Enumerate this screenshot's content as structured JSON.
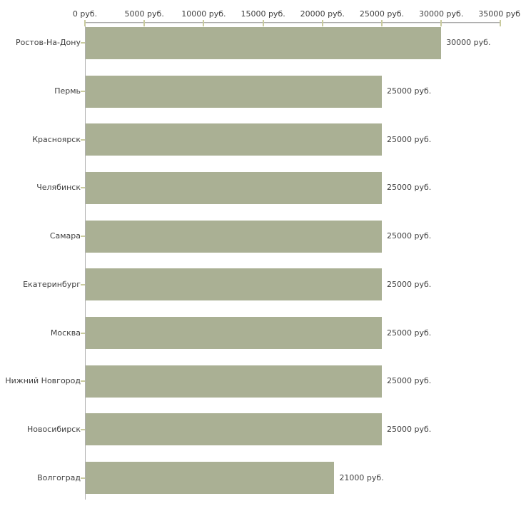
{
  "chart_data": {
    "type": "bar",
    "orientation": "horizontal",
    "title": "",
    "xlabel": "",
    "ylabel": "",
    "unit": "руб.",
    "grid": false,
    "legend": null,
    "xlim": [
      0,
      35000
    ],
    "x_axis": {
      "position": "top",
      "ticks": [
        {
          "value": 0,
          "label": "0 руб."
        },
        {
          "value": 5000,
          "label": "5000 руб."
        },
        {
          "value": 10000,
          "label": "10000 руб."
        },
        {
          "value": 15000,
          "label": "15000 руб."
        },
        {
          "value": 20000,
          "label": "20000 руб."
        },
        {
          "value": 25000,
          "label": "25000 руб."
        },
        {
          "value": 30000,
          "label": "30000 руб."
        },
        {
          "value": 35000,
          "label": "35000 руб."
        }
      ]
    },
    "categories": [
      "Ростов-На-Дону",
      "Пермь",
      "Красноярск",
      "Челябинск",
      "Самара",
      "Екатеринбург",
      "Москва",
      "Нижний Новгород",
      "Новосибирск",
      "Волгоград"
    ],
    "values": [
      30000,
      25000,
      25000,
      25000,
      25000,
      25000,
      25000,
      25000,
      25000,
      21000
    ],
    "value_labels": [
      "30000 руб.",
      "25000 руб.",
      "25000 руб.",
      "25000 руб.",
      "25000 руб.",
      "25000 руб.",
      "25000 руб.",
      "25000 руб.",
      "25000 руб.",
      "21000 руб."
    ],
    "colors": {
      "bar_fill": "#aab094",
      "axis_line": "#b0b0b0",
      "tick_mark": "#c9cb9e",
      "text": "#3f3f3f",
      "background": "#ffffff"
    }
  }
}
